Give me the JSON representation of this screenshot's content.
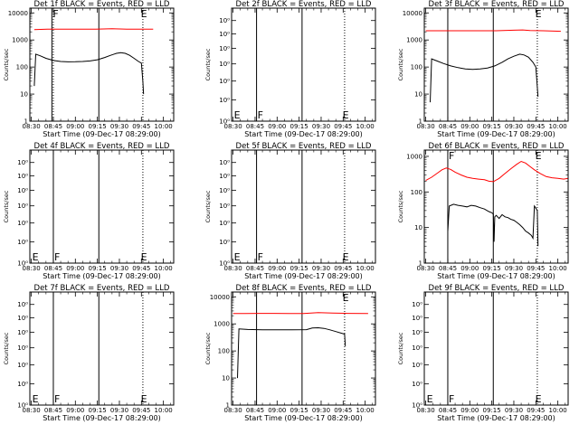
{
  "figure": {
    "xaxis": {
      "label": "Start Time (09-Dec-17 08:29:00)",
      "ticks": [
        "08:30",
        "08:45",
        "09:00",
        "09:15",
        "09:30",
        "09:45",
        "10:00"
      ],
      "tick_minutes": [
        30,
        45,
        60,
        75,
        90,
        105,
        120
      ],
      "range_minutes": [
        29,
        127
      ]
    },
    "colors": {
      "events": "#000000",
      "lld": "#ff0000"
    }
  },
  "chart_data": [
    {
      "type": "line",
      "title": "Det 1f BLACK = Events, RED = LLD",
      "ylabel": "Counts/sec",
      "yscale": "log",
      "ylim": [
        1,
        15000
      ],
      "ytick_labels": [
        "1",
        "10",
        "100",
        "1000",
        "10000"
      ],
      "ytick_values": [
        1,
        10,
        100,
        1000,
        10000
      ],
      "vlines_solid": [
        44,
        76
      ],
      "vlines_dotted": [
        45,
        106
      ],
      "markers": [
        {
          "text": "F",
          "x": 44,
          "pos": "top"
        },
        {
          "text": "E",
          "x": 104,
          "pos": "top"
        }
      ],
      "series": [
        {
          "color": "#ff0000",
          "x": [
            32,
            41,
            52,
            63,
            74,
            85,
            90,
            95,
            100,
            106,
            113
          ],
          "y": [
            2400,
            2500,
            2500,
            2500,
            2500,
            2600,
            2550,
            2500,
            2500,
            2500,
            2500
          ]
        },
        {
          "color": "#000000",
          "x": [
            32,
            33,
            36,
            40,
            45,
            50,
            55,
            60,
            65,
            70,
            75,
            80,
            84,
            88,
            91,
            94,
            97,
            100,
            103,
            105,
            106,
            106.5
          ],
          "y": [
            20,
            300,
            260,
            210,
            175,
            160,
            155,
            157,
            160,
            168,
            185,
            225,
            270,
            320,
            340,
            320,
            270,
            210,
            160,
            140,
            30,
            10
          ]
        }
      ]
    },
    {
      "type": "line",
      "title": "Det 2f BLACK = Events, RED = LLD",
      "ylabel": "Counts/sec",
      "yscale": "log",
      "ylim": [
        0.8,
        1.5
      ],
      "ytick_labels": [
        "10⁰",
        "10⁰",
        "10⁰",
        "10⁰",
        "10⁰",
        "10⁰",
        "10⁰"
      ],
      "ytick_values": [
        0.8,
        0.9,
        1.0,
        1.1,
        1.2,
        1.3,
        1.4
      ],
      "vlines_solid": [
        46,
        77
      ],
      "vlines_dotted": [
        106
      ],
      "markers": [
        {
          "text": "E",
          "x": 30,
          "pos": "bottom"
        },
        {
          "text": "F",
          "x": 46,
          "pos": "bottom"
        },
        {
          "text": "E",
          "x": 104,
          "pos": "bottom"
        }
      ],
      "series": []
    },
    {
      "type": "line",
      "title": "Det 3f BLACK = Events, RED = LLD",
      "ylabel": "Counts/sec",
      "yscale": "log",
      "ylim": [
        1,
        15000
      ],
      "ytick_labels": [
        "1",
        "10",
        "100",
        "1000",
        "10000"
      ],
      "ytick_values": [
        1,
        10,
        100,
        1000,
        10000
      ],
      "vlines_solid": [
        45,
        76
      ],
      "vlines_dotted": [
        106
      ],
      "markers": [
        {
          "text": "E",
          "x": 104,
          "pos": "top"
        }
      ],
      "series": [
        {
          "color": "#ff0000",
          "x": [
            30,
            43,
            55,
            66,
            78,
            90,
            96,
            101,
            110,
            122
          ],
          "y": [
            2200,
            2200,
            2200,
            2200,
            2200,
            2300,
            2350,
            2250,
            2200,
            2100
          ]
        },
        {
          "color": "#000000",
          "x": [
            33,
            34,
            38,
            42,
            47,
            52,
            57,
            62,
            67,
            72,
            77,
            82,
            86,
            90,
            94,
            97,
            100,
            103,
            105,
            106.5
          ],
          "y": [
            5,
            200,
            165,
            135,
            110,
            95,
            85,
            82,
            85,
            92,
            110,
            150,
            200,
            250,
            300,
            280,
            230,
            150,
            100,
            8
          ]
        }
      ]
    },
    {
      "type": "line",
      "title": "Det 4f BLACK = Events, RED = LLD",
      "ylabel": "Counts/sec",
      "yscale": "log",
      "ylim": [
        0.8,
        1.5
      ],
      "ytick_labels": [
        "10⁰",
        "10⁰",
        "10⁰",
        "10⁰",
        "10⁰",
        "10⁰",
        "10⁰"
      ],
      "ytick_values": [
        0.8,
        0.9,
        1.0,
        1.1,
        1.2,
        1.3,
        1.4
      ],
      "vlines_solid": [
        45,
        76
      ],
      "vlines_dotted": [
        106
      ],
      "markers": [
        {
          "text": "E",
          "x": 30,
          "pos": "bottom"
        },
        {
          "text": "F",
          "x": 45,
          "pos": "bottom"
        },
        {
          "text": "E",
          "x": 104,
          "pos": "bottom"
        }
      ],
      "series": []
    },
    {
      "type": "line",
      "title": "Det 5f BLACK = Events, RED = LLD",
      "ylabel": "Counts/sec",
      "yscale": "log",
      "ylim": [
        0.8,
        1.5
      ],
      "ytick_labels": [
        "10⁰",
        "10⁰",
        "10⁰",
        "10⁰",
        "10⁰",
        "10⁰",
        "10⁰"
      ],
      "ytick_values": [
        0.8,
        0.9,
        1.0,
        1.1,
        1.2,
        1.3,
        1.4
      ],
      "vlines_solid": [
        46,
        77
      ],
      "vlines_dotted": [
        106
      ],
      "markers": [
        {
          "text": "E",
          "x": 30,
          "pos": "bottom"
        },
        {
          "text": "F",
          "x": 46,
          "pos": "bottom"
        },
        {
          "text": "E",
          "x": 104,
          "pos": "bottom"
        }
      ],
      "series": []
    },
    {
      "type": "line",
      "title": "Det 6f BLACK = Events, RED = LLD",
      "ylabel": "Counts/sec",
      "yscale": "log",
      "ylim": [
        1,
        1500
      ],
      "ytick_labels": [
        "1",
        "10",
        "100",
        "1000"
      ],
      "ytick_values": [
        1,
        10,
        100,
        1000
      ],
      "vlines_solid": [
        45,
        76
      ],
      "vlines_dotted": [
        106
      ],
      "markers": [
        {
          "text": "F",
          "x": 45,
          "pos": "top"
        },
        {
          "text": "E",
          "x": 104,
          "pos": "top"
        }
      ],
      "series": [
        {
          "color": "#ff0000",
          "x": [
            30,
            34,
            38,
            41,
            44,
            47,
            50,
            54,
            58,
            62,
            66,
            70,
            73,
            76,
            80,
            84,
            88,
            92,
            95,
            98,
            101,
            104,
            108,
            112,
            116,
            120,
            124,
            127
          ],
          "y": [
            210,
            260,
            340,
            420,
            470,
            430,
            360,
            300,
            260,
            240,
            230,
            220,
            200,
            195,
            240,
            330,
            450,
            600,
            720,
            650,
            520,
            420,
            330,
            270,
            250,
            240,
            230,
            240
          ]
        },
        {
          "color": "#000000",
          "x": [
            45,
            46,
            49,
            52,
            55,
            58,
            61,
            64,
            67,
            70,
            73,
            75,
            76,
            76.5,
            77,
            78,
            80,
            82,
            84,
            86,
            88,
            90,
            92,
            94,
            96,
            98,
            100,
            102,
            103,
            104,
            105,
            106,
            106.5
          ],
          "y": [
            8,
            40,
            45,
            42,
            40,
            38,
            42,
            40,
            36,
            33,
            28,
            26,
            24,
            4,
            20,
            22,
            18,
            23,
            20,
            19,
            17,
            16,
            14,
            12,
            10,
            8,
            7,
            6,
            5,
            40,
            35,
            30,
            3
          ]
        }
      ]
    },
    {
      "type": "line",
      "title": "Det 7f BLACK = Events, RED = LLD",
      "ylabel": "Counts/sec",
      "yscale": "log",
      "ylim": [
        0.8,
        1.5
      ],
      "ytick_labels": [
        "10⁰",
        "10⁰",
        "10⁰",
        "10⁰",
        "10⁰",
        "10⁰",
        "10⁰"
      ],
      "ytick_values": [
        0.8,
        0.9,
        1.0,
        1.1,
        1.2,
        1.3,
        1.4
      ],
      "vlines_solid": [
        45,
        76
      ],
      "vlines_dotted": [
        106
      ],
      "markers": [
        {
          "text": "E",
          "x": 30,
          "pos": "bottom"
        },
        {
          "text": "F",
          "x": 45,
          "pos": "bottom"
        },
        {
          "text": "E",
          "x": 104,
          "pos": "bottom"
        }
      ],
      "series": []
    },
    {
      "type": "line",
      "title": "Det 8f BLACK = Events, RED = LLD",
      "ylabel": "Counts/sec",
      "yscale": "log",
      "ylim": [
        1,
        15000
      ],
      "ytick_labels": [
        "1",
        "10",
        "100",
        "1000",
        "10000"
      ],
      "ytick_values": [
        1,
        10,
        100,
        1000,
        10000
      ],
      "vlines_solid": [
        46,
        77
      ],
      "vlines_dotted": [
        106
      ],
      "markers": [
        {
          "text": "E",
          "x": 104,
          "pos": "top"
        }
      ],
      "series": [
        {
          "color": "#ff0000",
          "x": [
            30,
            38,
            48,
            58,
            68,
            78,
            88,
            98,
            108,
            122
          ],
          "y": [
            2400,
            2400,
            2450,
            2450,
            2400,
            2400,
            2600,
            2500,
            2450,
            2400
          ]
        },
        {
          "color": "#000000",
          "x": [
            33,
            34,
            40,
            50,
            60,
            70,
            80,
            84,
            88,
            92,
            96,
            100,
            104,
            106,
            106.5
          ],
          "y": [
            10,
            650,
            620,
            600,
            600,
            600,
            610,
            700,
            720,
            680,
            600,
            520,
            450,
            420,
            150
          ]
        }
      ]
    },
    {
      "type": "line",
      "title": "Det 9f BLACK = Events, RED = LLD",
      "ylabel": "Counts/sec",
      "yscale": "log",
      "ylim": [
        0.8,
        1.5
      ],
      "ytick_labels": [
        "10⁰",
        "10⁰",
        "10⁰",
        "10⁰",
        "10⁰",
        "10⁰",
        "10⁰"
      ],
      "ytick_values": [
        0.8,
        0.9,
        1.0,
        1.1,
        1.2,
        1.3,
        1.4
      ],
      "vlines_solid": [
        45,
        76
      ],
      "vlines_dotted": [
        106
      ],
      "markers": [
        {
          "text": "E",
          "x": 30,
          "pos": "bottom"
        },
        {
          "text": "F",
          "x": 45,
          "pos": "bottom"
        },
        {
          "text": "E",
          "x": 104,
          "pos": "bottom"
        }
      ],
      "series": []
    }
  ]
}
